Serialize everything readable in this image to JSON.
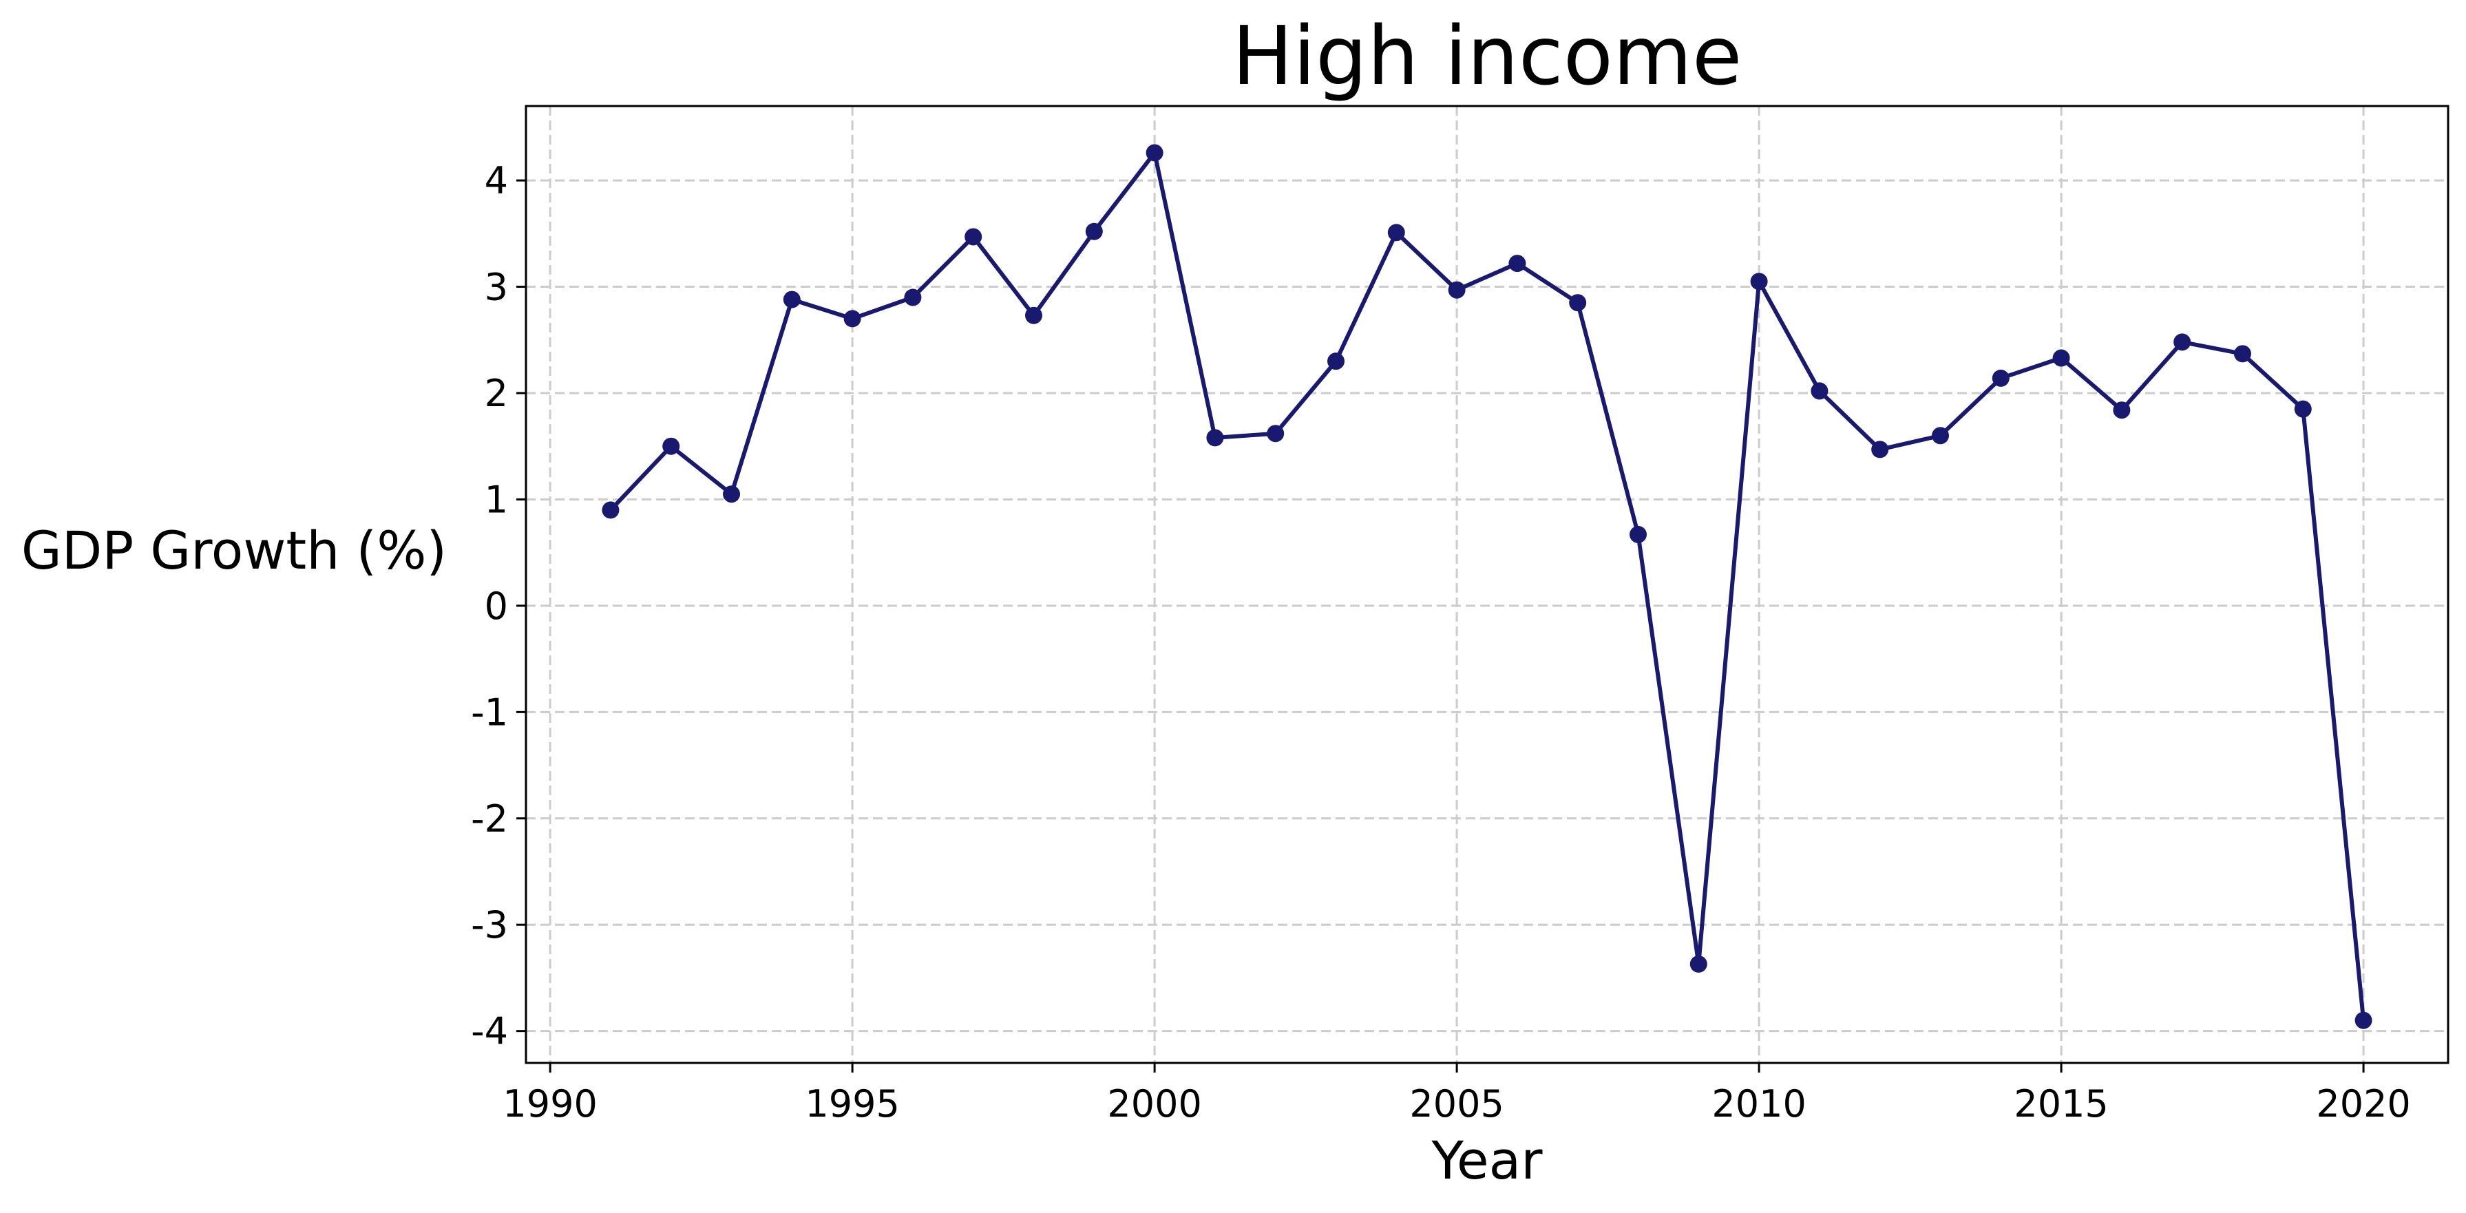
{
  "chart_data": {
    "type": "line",
    "title": "High income",
    "xlabel": "Year",
    "ylabel": "GDP Growth (%)",
    "xlim": [
      1989.6,
      2021.4
    ],
    "ylim": [
      -4.3,
      4.7
    ],
    "xticks": [
      1990,
      1995,
      2000,
      2005,
      2010,
      2015,
      2020
    ],
    "xtick_labels": [
      "1990",
      "1995",
      "2000",
      "2005",
      "2010",
      "2015",
      "2020"
    ],
    "yticks": [
      -4,
      -3,
      -2,
      -1,
      0,
      1,
      2,
      3,
      4
    ],
    "ytick_labels": [
      "-4",
      "-3",
      "-2",
      "-1",
      "0",
      "1",
      "2",
      "3",
      "4"
    ],
    "grid": true,
    "series": [
      {
        "color": "#191970",
        "x": [
          1991,
          1992,
          1993,
          1994,
          1995,
          1996,
          1997,
          1998,
          1999,
          2000,
          2001,
          2002,
          2003,
          2004,
          2005,
          2006,
          2007,
          2008,
          2009,
          2010,
          2011,
          2012,
          2013,
          2014,
          2015,
          2016,
          2017,
          2018,
          2019,
          2020
        ],
        "y": [
          0.9,
          1.5,
          1.05,
          2.88,
          2.7,
          2.9,
          3.47,
          2.73,
          3.52,
          4.26,
          1.58,
          1.62,
          2.3,
          3.51,
          2.97,
          3.22,
          2.85,
          0.67,
          -3.37,
          3.05,
          2.02,
          1.47,
          1.6,
          2.14,
          2.33,
          1.84,
          2.48,
          2.37,
          1.85,
          -3.9
        ]
      }
    ]
  }
}
